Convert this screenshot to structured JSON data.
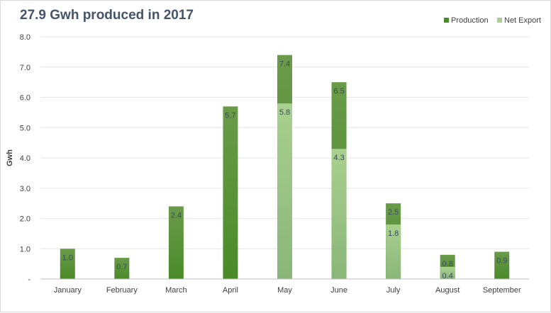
{
  "chart_data": {
    "type": "bar",
    "title": "27.9 Gwh produced in 2017",
    "xlabel": "",
    "ylabel": "Gwh",
    "ylim": [
      0,
      8
    ],
    "yticks": [
      0,
      1,
      2,
      3,
      4,
      5,
      6,
      7,
      8
    ],
    "ytick_labels": [
      "-",
      "1.0",
      "2.0",
      "3.0",
      "4.0",
      "5.0",
      "6.0",
      "7.0",
      "8.0"
    ],
    "categories": [
      "January",
      "February",
      "March",
      "April",
      "May",
      "June",
      "July",
      "August",
      "September"
    ],
    "series": [
      {
        "name": "Production",
        "values": [
          1.0,
          0.7,
          2.4,
          5.7,
          7.4,
          6.5,
          2.5,
          0.8,
          0.9
        ],
        "labels": [
          "1.0",
          "0.7",
          "2.4",
          "5.7",
          "7.4",
          "6.5",
          "2.5",
          "0.8",
          "0.9"
        ]
      },
      {
        "name": "Net Export",
        "values": [
          null,
          null,
          null,
          null,
          5.8,
          4.3,
          1.8,
          0.4,
          null
        ],
        "labels": [
          "",
          "",
          "",
          "",
          "5.8",
          "4.3",
          "1.8",
          "0.4",
          ""
        ]
      }
    ],
    "grid": true,
    "legend_position": "top-right",
    "colors": {
      "production_top": "#6a9b4a",
      "production_bottom": "#4a8a2a",
      "export_top": "#a9d08e",
      "export_bottom": "#8ab67a",
      "grid": "#e6e6e6",
      "axis": "#bfbfbf",
      "title": "#44546a"
    }
  }
}
